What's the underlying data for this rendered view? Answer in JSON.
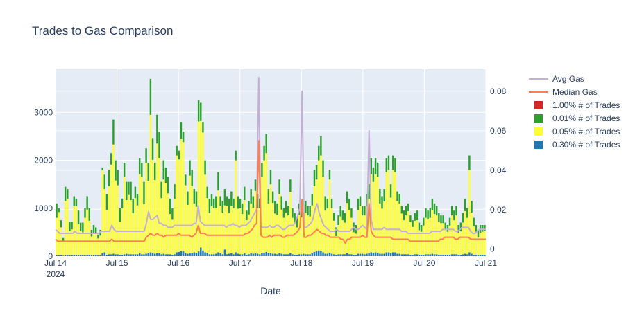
{
  "chart_data": {
    "type": "bar",
    "title": "Trades to Gas Comparison",
    "xlabel": "Date",
    "ylabel": "",
    "y2label": "",
    "barmode": "stack",
    "x_tick_labels": [
      "Jul 14",
      "Jul 15",
      "Jul 16",
      "Jul 17",
      "Jul 18",
      "Jul 19",
      "Jul 20",
      "Jul 21"
    ],
    "x_tick_year": "2024",
    "y_tick_labels": [
      "0",
      "1000",
      "2000",
      "3000"
    ],
    "y2_tick_labels": [
      "0",
      "0.02",
      "0.04",
      "0.06",
      "0.08"
    ],
    "ylim": [
      0,
      3900
    ],
    "y2lim": [
      -0.0036,
      0.0912
    ],
    "xlim_hours": [
      0,
      168
    ],
    "grid": true,
    "legend_placement": "top-right",
    "colors": {
      "plot_bg": "#e5ecf6",
      "avg_gas": "#c5b0d5",
      "median_gas": "#ff7f50",
      "pct_1_00": "#d62728",
      "pct_0_01": "#2ca02c",
      "pct_0_05": "#ffff33",
      "pct_0_30": "#1f77b4"
    },
    "legend": [
      {
        "key": "avg_gas",
        "label": "Avg Gas",
        "kind": "line"
      },
      {
        "key": "median_gas",
        "label": "Median Gas",
        "kind": "line"
      },
      {
        "key": "pct_1_00",
        "label": "1.00% # of Trades",
        "kind": "bar"
      },
      {
        "key": "pct_0_01",
        "label": "0.01% # of Trades",
        "kind": "bar"
      },
      {
        "key": "pct_0_05",
        "label": "0.05% # of Trades",
        "kind": "bar"
      },
      {
        "key": "pct_0_30",
        "label": "0.30% # of Trades",
        "kind": "bar"
      }
    ],
    "bars_stack_order": [
      "pct_0_30",
      "pct_0_05",
      "pct_0_01",
      "pct_1_00"
    ],
    "series": {
      "totals": [
        1100,
        1000,
        750,
        380,
        1450,
        1400,
        720,
        720,
        1250,
        1200,
        950,
        700,
        700,
        1000,
        1250,
        1000,
        550,
        650,
        600,
        450,
        550,
        1850,
        1700,
        1300,
        1800,
        2150,
        2850,
        2000,
        1800,
        1000,
        1200,
        1950,
        1550,
        1550,
        1550,
        1200,
        1450,
        1300,
        2050,
        1950,
        1550,
        2250,
        1950,
        3700,
        2450,
        1950,
        2950,
        2600,
        1550,
        2000,
        1850,
        1650,
        1200,
        1000,
        1500,
        2300,
        2200,
        2800,
        2600,
        1700,
        1350,
        2000,
        1800,
        1400,
        1350,
        3250,
        3200,
        2800,
        2000,
        1450,
        1200,
        1300,
        1200,
        1250,
        1750,
        1250,
        1150,
        1400,
        1250,
        1200,
        1350,
        1200,
        2200,
        1250,
        1200,
        1100,
        1450,
        950,
        1150,
        1400,
        1250,
        1600,
        1300,
        1200,
        1950,
        2300,
        2550,
        1400,
        1800,
        1350,
        1150,
        1100,
        1600,
        1250,
        1000,
        1150,
        1050,
        1600,
        1000,
        900,
        800,
        1100,
        1050,
        1200,
        1150,
        1050,
        1050,
        1300,
        1800,
        1900,
        2300,
        2500,
        2000,
        1250,
        1200,
        1800,
        1200,
        900,
        600,
        850,
        1050,
        950,
        900,
        1350,
        1200,
        1000,
        700,
        650,
        1200,
        1250,
        1050,
        1050,
        1300,
        1500,
        2050,
        1850,
        2050,
        1950,
        1400,
        1250,
        1400,
        2050,
        2100,
        1500,
        2100,
        2050,
        1350,
        1300,
        1050,
        950,
        1050,
        1100,
        850,
        750,
        900,
        950,
        700,
        650,
        800,
        1000,
        950,
        1000,
        1200,
        1100,
        1050,
        900,
        850,
        850,
        700,
        650,
        800,
        1050,
        950,
        1050,
        650,
        700,
        900,
        1200,
        1000,
        2100,
        1150,
        800,
        650,
        550,
        650,
        650,
        650
      ],
      "pct_0_01_cap": [
        300,
        80,
        150,
        60,
        300,
        200,
        200,
        160,
        200,
        160,
        300,
        180,
        200,
        200,
        280,
        260,
        140,
        180,
        120,
        80,
        120,
        60,
        300,
        340,
        340,
        240,
        520,
        420,
        320,
        280,
        200,
        300,
        380,
        260,
        380,
        300,
        240,
        240,
        340,
        300,
        480,
        300,
        380,
        750,
        440,
        360,
        600,
        550,
        340,
        400,
        320,
        340,
        320,
        240,
        300,
        200,
        180,
        360,
        220,
        220,
        280,
        320,
        340,
        300,
        320,
        440,
        380,
        220,
        300,
        240,
        300,
        260,
        200,
        240,
        380,
        200,
        240,
        340,
        200,
        300,
        300,
        200,
        200,
        260,
        200,
        220,
        280,
        200,
        280,
        300,
        240,
        240,
        300,
        200,
        300,
        300,
        400,
        300,
        300,
        240,
        260,
        240,
        300,
        280,
        200,
        240,
        200,
        260,
        200,
        220,
        200,
        240,
        240,
        240,
        240,
        200,
        220,
        240,
        340,
        300,
        300,
        400,
        340,
        300,
        200,
        200,
        200,
        160,
        180,
        200,
        220,
        200,
        200,
        240,
        240,
        200,
        200,
        180,
        240,
        200,
        200,
        200,
        260,
        300,
        340,
        300,
        340,
        300,
        300,
        260,
        260,
        300,
        300,
        280,
        300,
        300,
        200,
        200,
        160,
        200,
        200,
        160,
        140,
        140,
        160,
        200,
        160,
        140,
        160,
        200,
        180,
        200,
        240,
        220,
        200,
        180,
        160,
        160,
        140,
        140,
        160,
        200,
        200,
        200,
        160,
        180,
        200,
        260,
        200,
        300,
        240,
        180,
        140,
        160,
        160,
        140,
        130
      ],
      "pct_0_30": [
        20,
        20,
        30,
        10,
        20,
        30,
        20,
        20,
        30,
        20,
        20,
        30,
        20,
        20,
        30,
        30,
        20,
        20,
        30,
        20,
        20,
        60,
        80,
        30,
        40,
        40,
        50,
        40,
        40,
        30,
        30,
        40,
        50,
        40,
        40,
        40,
        40,
        40,
        60,
        40,
        40,
        50,
        60,
        80,
        60,
        50,
        60,
        60,
        40,
        50,
        40,
        40,
        40,
        30,
        40,
        80,
        90,
        110,
        100,
        60,
        50,
        60,
        60,
        80,
        60,
        100,
        180,
        120,
        80,
        60,
        40,
        40,
        40,
        50,
        80,
        60,
        40,
        140,
        40,
        50,
        60,
        40,
        80,
        50,
        40,
        40,
        60,
        30,
        40,
        60,
        50,
        60,
        50,
        40,
        60,
        70,
        90,
        60,
        60,
        50,
        50,
        40,
        60,
        50,
        40,
        40,
        40,
        60,
        40,
        30,
        30,
        40,
        40,
        50,
        40,
        40,
        40,
        60,
        90,
        100,
        120,
        110,
        80,
        50,
        50,
        70,
        50,
        40,
        30,
        40,
        40,
        40,
        40,
        60,
        40,
        40,
        30,
        30,
        50,
        50,
        50,
        40,
        50,
        60,
        80,
        70,
        80,
        70,
        50,
        50,
        50,
        80,
        80,
        60,
        80,
        80,
        50,
        50,
        40,
        40,
        40,
        40,
        30,
        30,
        40,
        40,
        30,
        30,
        30,
        40,
        40,
        40,
        50,
        40,
        40,
        30,
        30,
        30,
        30,
        30,
        30,
        40,
        40,
        40,
        30,
        30,
        40,
        50,
        40,
        80,
        50,
        30,
        30,
        20,
        30,
        30,
        30
      ],
      "avg_gas": [
        0.01,
        0.009,
        0.008,
        0.008,
        0.008,
        0.008,
        0.008,
        0.008,
        0.008,
        0.009,
        0.008,
        0.008,
        0.008,
        0.008,
        0.008,
        0.008,
        0.008,
        0.008,
        0.008,
        0.008,
        0.008,
        0.009,
        0.009,
        0.009,
        0.009,
        0.009,
        0.012,
        0.01,
        0.009,
        0.009,
        0.009,
        0.009,
        0.009,
        0.009,
        0.009,
        0.009,
        0.009,
        0.009,
        0.009,
        0.009,
        0.009,
        0.009,
        0.013,
        0.019,
        0.015,
        0.015,
        0.016,
        0.017,
        0.013,
        0.013,
        0.012,
        0.012,
        0.011,
        0.011,
        0.011,
        0.012,
        0.012,
        0.012,
        0.012,
        0.012,
        0.012,
        0.012,
        0.012,
        0.012,
        0.013,
        0.013,
        0.022,
        0.014,
        0.013,
        0.012,
        0.012,
        0.012,
        0.012,
        0.012,
        0.012,
        0.012,
        0.012,
        0.012,
        0.012,
        0.011,
        0.012,
        0.012,
        0.013,
        0.012,
        0.012,
        0.011,
        0.012,
        0.012,
        0.012,
        0.013,
        0.014,
        0.016,
        0.018,
        0.02,
        0.087,
        0.011,
        0.011,
        0.011,
        0.011,
        0.012,
        0.011,
        0.011,
        0.012,
        0.012,
        0.011,
        0.01,
        0.01,
        0.011,
        0.012,
        0.012,
        0.012,
        0.014,
        0.017,
        0.021,
        0.08,
        0.011,
        0.011,
        0.012,
        0.013,
        0.015,
        0.02,
        0.023,
        0.018,
        0.015,
        0.012,
        0.011,
        0.01,
        0.009,
        0.009,
        0.009,
        0.01,
        0.009,
        0.009,
        0.009,
        0.009,
        0.009,
        0.009,
        0.01,
        0.011,
        0.01,
        0.01,
        0.011,
        0.012,
        0.011,
        0.01,
        0.06,
        0.015,
        0.01,
        0.01,
        0.01,
        0.01,
        0.01,
        0.011,
        0.01,
        0.01,
        0.01,
        0.01,
        0.01,
        0.01,
        0.01,
        0.009,
        0.009,
        0.009,
        0.008,
        0.008,
        0.008,
        0.008,
        0.008,
        0.008,
        0.008,
        0.008,
        0.008,
        0.008,
        0.008,
        0.009,
        0.009,
        0.009,
        0.009,
        0.009,
        0.01,
        0.01,
        0.01,
        0.01,
        0.01,
        0.01,
        0.009,
        0.009,
        0.01,
        0.011,
        0.011,
        0.011,
        0.011,
        0.009,
        0.008,
        0.008,
        0.009,
        0.01,
        0.01,
        0.01,
        0.01
      ],
      "median_gas": [
        0.005,
        0.004,
        0.004,
        0.004,
        0.004,
        0.004,
        0.004,
        0.004,
        0.004,
        0.004,
        0.004,
        0.004,
        0.004,
        0.004,
        0.004,
        0.004,
        0.004,
        0.004,
        0.004,
        0.004,
        0.004,
        0.004,
        0.004,
        0.004,
        0.004,
        0.004,
        0.005,
        0.004,
        0.004,
        0.004,
        0.004,
        0.004,
        0.004,
        0.004,
        0.004,
        0.004,
        0.004,
        0.004,
        0.004,
        0.004,
        0.004,
        0.004,
        0.006,
        0.007,
        0.008,
        0.007,
        0.007,
        0.008,
        0.007,
        0.007,
        0.006,
        0.007,
        0.007,
        0.007,
        0.007,
        0.007,
        0.007,
        0.008,
        0.007,
        0.007,
        0.007,
        0.007,
        0.007,
        0.006,
        0.007,
        0.008,
        0.012,
        0.008,
        0.008,
        0.008,
        0.007,
        0.007,
        0.007,
        0.007,
        0.007,
        0.007,
        0.007,
        0.007,
        0.007,
        0.007,
        0.007,
        0.007,
        0.007,
        0.007,
        0.007,
        0.007,
        0.007,
        0.007,
        0.008,
        0.008,
        0.009,
        0.01,
        0.012,
        0.013,
        0.055,
        0.007,
        0.006,
        0.006,
        0.006,
        0.007,
        0.006,
        0.007,
        0.007,
        0.007,
        0.007,
        0.006,
        0.006,
        0.007,
        0.007,
        0.007,
        0.007,
        0.008,
        0.009,
        0.011,
        0.025,
        0.006,
        0.006,
        0.007,
        0.007,
        0.008,
        0.009,
        0.01,
        0.009,
        0.008,
        0.008,
        0.007,
        0.007,
        0.006,
        0.006,
        0.006,
        0.006,
        0.006,
        0.005,
        0.005,
        0.003,
        0.005,
        0.005,
        0.006,
        0.006,
        0.006,
        0.006,
        0.006,
        0.007,
        0.006,
        0.006,
        0.023,
        0.009,
        0.007,
        0.006,
        0.006,
        0.006,
        0.006,
        0.006,
        0.006,
        0.006,
        0.006,
        0.005,
        0.005,
        0.005,
        0.005,
        0.005,
        0.005,
        0.005,
        0.005,
        0.004,
        0.004,
        0.004,
        0.004,
        0.004,
        0.004,
        0.004,
        0.004,
        0.004,
        0.004,
        0.004,
        0.004,
        0.004,
        0.004,
        0.005,
        0.005,
        0.006,
        0.006,
        0.006,
        0.006,
        0.006,
        0.005,
        0.005,
        0.006,
        0.006,
        0.006,
        0.006,
        0.006,
        0.005,
        0.005,
        0.005,
        0.005,
        0.005,
        0.005,
        0.005,
        0.005
      ]
    }
  }
}
